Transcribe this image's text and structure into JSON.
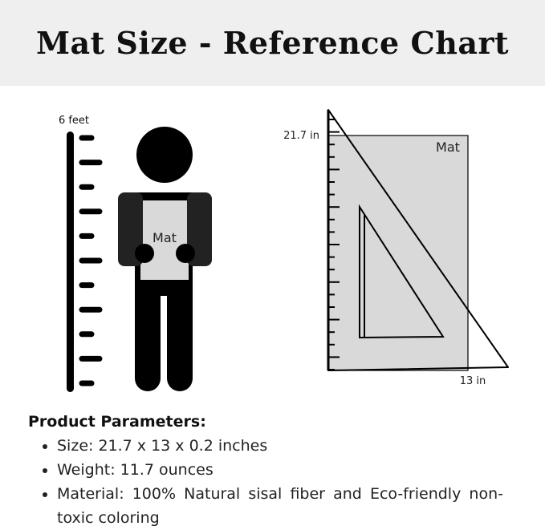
{
  "title": "Mat Size - Reference Chart",
  "height_label": "6 feet",
  "person_mat_label": "Mat",
  "mat_label": "Mat",
  "mat_height_label": "21.7 in",
  "mat_width_label": "13 in",
  "colors": {
    "header_bg": "#efefef",
    "mat_fill": "#d9d9d9",
    "figure": "#000000",
    "arms": "#222222"
  },
  "params": {
    "heading": "Product Parameters:",
    "items": [
      "Size: 21.7 x 13 x 0.2 inches",
      "Weight: 11.7 ounces",
      "Material: 100% Natural sisal fiber and Eco-friendly non-toxic coloring"
    ]
  }
}
